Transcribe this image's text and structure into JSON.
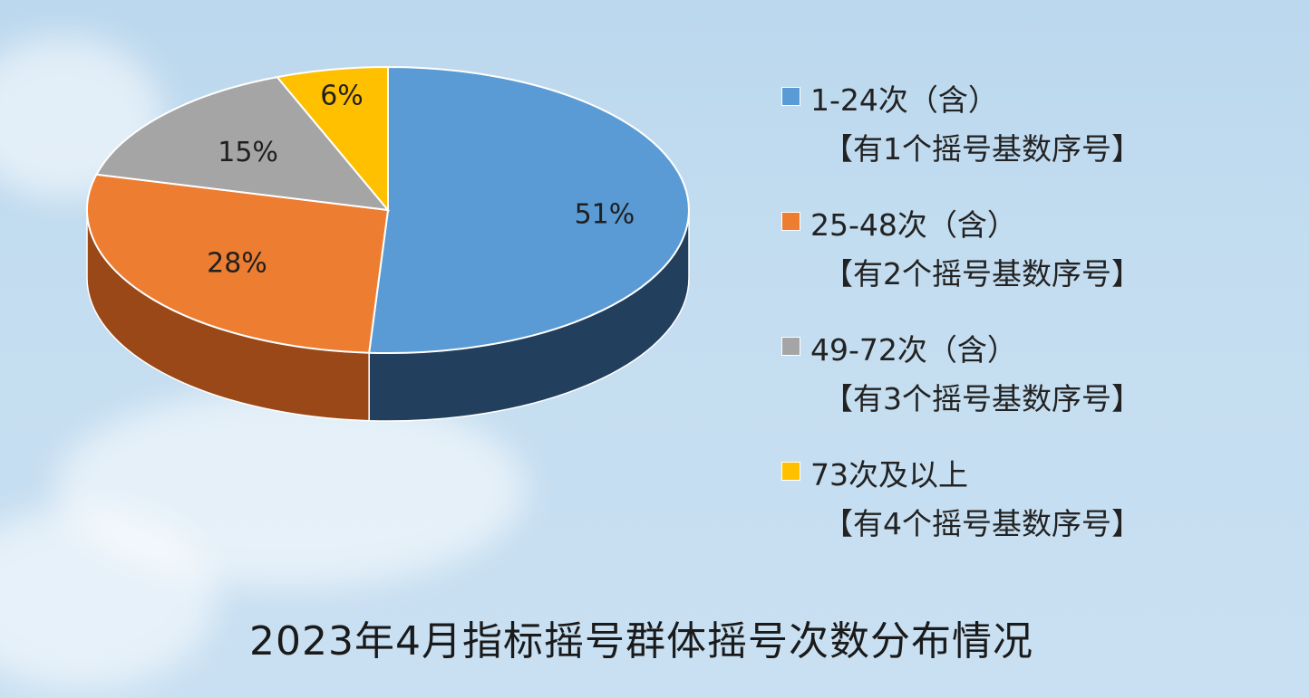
{
  "chart_data": {
    "type": "pie",
    "title": "2023年4月指标摇号群体摇号次数分布情况",
    "slices": [
      {
        "label": "1-24次（含）",
        "sub": "【有1个摇号基数序号】",
        "value": 51,
        "display": "51%",
        "color": "#5b9bd5",
        "dark": "#22405e"
      },
      {
        "label": "25-48次（含）",
        "sub": "【有2个摇号基数序号】",
        "value": 28,
        "display": "28%",
        "color": "#ed7d31",
        "dark": "#9a4817"
      },
      {
        "label": "49-72次（含）",
        "sub": "【有3个摇号基数序号】",
        "value": 15,
        "display": "15%",
        "color": "#a5a5a5",
        "dark": "#6b6b6b"
      },
      {
        "label": "73次及以上",
        "sub": "【有4个摇号基数序号】",
        "value": 6,
        "display": "6%",
        "color": "#ffc000",
        "dark": "#a67c00"
      }
    ],
    "legend_position": "right"
  }
}
